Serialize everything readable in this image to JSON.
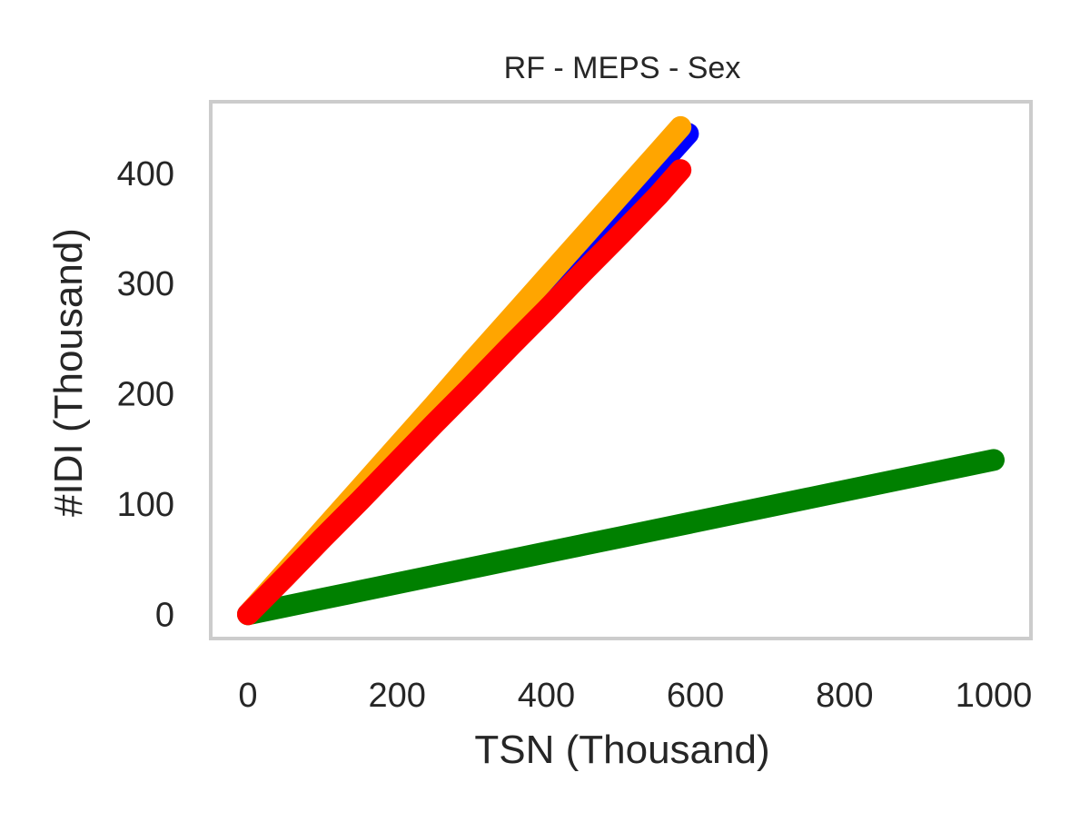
{
  "chart_data": {
    "type": "line",
    "title": "RF - MEPS - Sex",
    "xlabel": "TSN (Thousand)",
    "ylabel": "#IDI (Thousand)",
    "xlim": [
      -50,
      1050
    ],
    "ylim": [
      -22,
      465
    ],
    "xticks": [
      0,
      200,
      400,
      600,
      800,
      1000
    ],
    "yticks": [
      0,
      100,
      200,
      300,
      400
    ],
    "grid": false,
    "legend": "none",
    "series": [
      {
        "color": "#0000ff",
        "x": [
          0,
          50,
          100,
          150,
          200,
          250,
          300,
          350,
          400,
          450,
          500,
          550,
          590
        ],
        "y": [
          0,
          36,
          73,
          110,
          147,
          184,
          221,
          258,
          295,
          332,
          369,
          406,
          436
        ]
      },
      {
        "color": "#008000",
        "x": [
          0,
          50,
          100,
          150,
          200,
          250,
          300,
          350,
          400,
          450,
          500,
          550,
          600,
          650,
          700,
          750,
          800,
          850,
          900,
          950,
          1000
        ],
        "y": [
          0,
          7,
          14,
          21,
          28,
          35,
          42,
          49,
          56,
          63,
          70,
          77,
          84,
          91,
          98,
          105,
          112,
          119,
          126,
          133,
          140
        ]
      },
      {
        "color": "#ffa500",
        "x": [
          0,
          50,
          100,
          150,
          200,
          250,
          300,
          350,
          400,
          450,
          500,
          550,
          580
        ],
        "y": [
          0,
          38,
          76,
          114,
          152,
          190,
          229,
          267,
          305,
          343,
          381,
          419,
          442
        ]
      },
      {
        "color": "#ff0000",
        "x": [
          0,
          50,
          100,
          150,
          200,
          250,
          300,
          350,
          400,
          450,
          500,
          550,
          580
        ],
        "y": [
          0,
          34,
          69,
          103,
          138,
          173,
          207,
          242,
          276,
          311,
          345,
          380,
          403
        ]
      }
    ]
  }
}
